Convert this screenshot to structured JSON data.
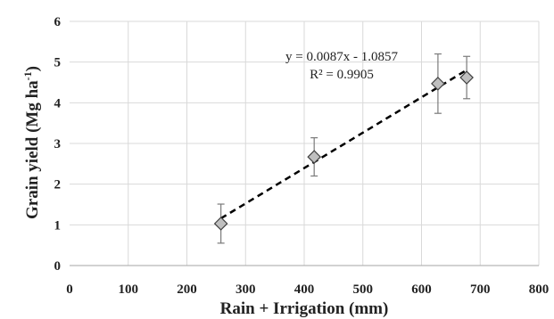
{
  "chart_data": {
    "type": "scatter",
    "xlabel": "Rain + Irrigation (mm)",
    "ylabel": "Grain yield (Mg ha",
    "ylabel_sup": "-1",
    "ylabel_end": ")",
    "xlim": [
      0,
      800
    ],
    "ylim": [
      0,
      6
    ],
    "xticks": [
      0,
      100,
      200,
      300,
      400,
      500,
      600,
      700,
      800
    ],
    "yticks": [
      0,
      1,
      2,
      3,
      4,
      5,
      6
    ],
    "grid": true,
    "series": [
      {
        "points": [
          {
            "x": 258,
            "y": 1.03,
            "err": 0.48
          },
          {
            "x": 417,
            "y": 2.67,
            "err": 0.47
          },
          {
            "x": 628,
            "y": 4.47,
            "err": 0.73
          },
          {
            "x": 677,
            "y": 4.62,
            "err": 0.52
          }
        ]
      }
    ],
    "trendline": {
      "slope": 0.0087,
      "intercept": -1.0857,
      "x_range": [
        258,
        677
      ],
      "equation": "y = 0.0087x - 1.0857",
      "r2": "R² = 0.9905"
    }
  }
}
